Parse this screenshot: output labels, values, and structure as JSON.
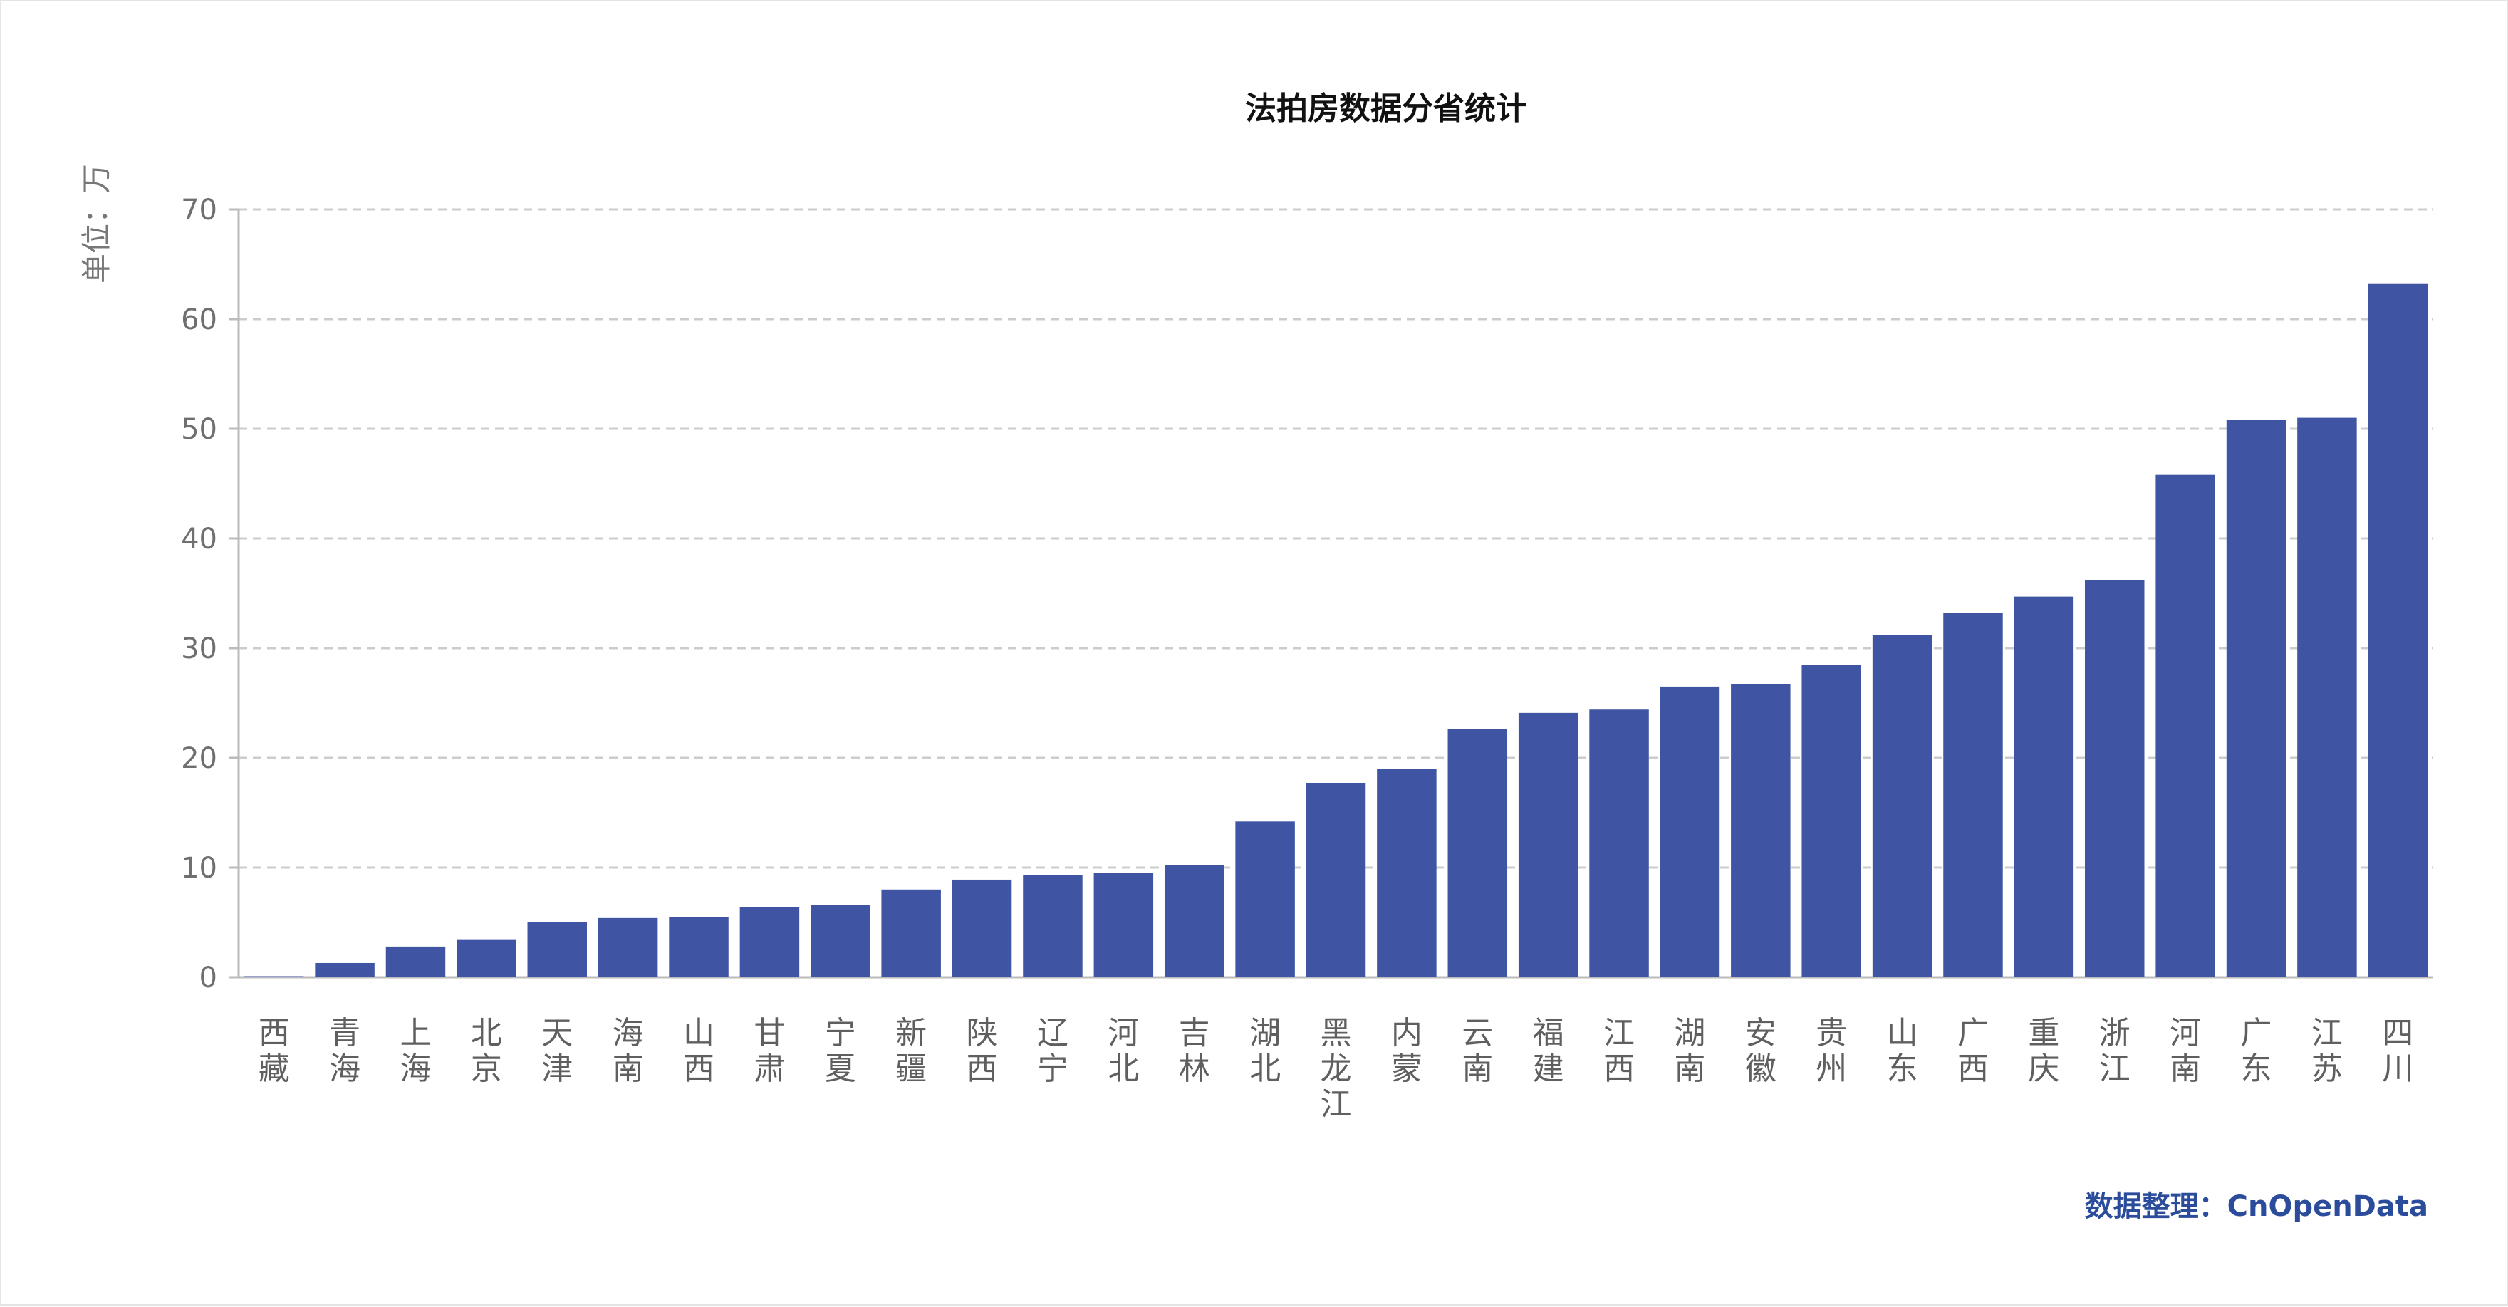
{
  "chart_data": {
    "type": "bar",
    "title": "法拍房数据分省统计",
    "ylabel": "单位：万",
    "xlabel": "",
    "ylim": [
      0,
      70
    ],
    "yticks": [
      0,
      10,
      20,
      30,
      40,
      50,
      60,
      70
    ],
    "grid": true,
    "categories": [
      "西藏",
      "青海",
      "上海",
      "北京",
      "天津",
      "海南",
      "山西",
      "甘肃",
      "宁夏",
      "新疆",
      "陕西",
      "辽宁",
      "河北",
      "吉林",
      "湖北",
      "黑龙江",
      "内蒙",
      "云南",
      "福建",
      "江西",
      "湖南",
      "安徽",
      "贵州",
      "山东",
      "广西",
      "重庆",
      "浙江",
      "河南",
      "广东",
      "江苏",
      "四川"
    ],
    "values": [
      0.1,
      1.3,
      2.8,
      3.4,
      5.0,
      5.4,
      5.5,
      6.4,
      6.6,
      8.0,
      8.9,
      9.3,
      9.5,
      10.2,
      14.2,
      17.7,
      19.0,
      22.6,
      24.1,
      24.4,
      26.5,
      26.7,
      28.5,
      31.2,
      33.2,
      34.7,
      36.2,
      45.8,
      50.8,
      51.0,
      63.2
    ],
    "colors": {
      "bar": "#4054a4",
      "grid": "#cccccc",
      "axis": "#bbbbbb",
      "source": "#2b4b9b"
    }
  },
  "source_note": "数据整理：CnOpenData"
}
